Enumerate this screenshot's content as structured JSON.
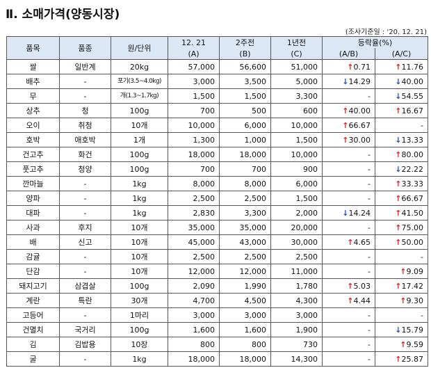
{
  "title": "Ⅱ. 소매가격(양동시장)",
  "survey_date": "(조사기준일 : '20. 12. 21)",
  "headers": {
    "item": "품목",
    "variety": "품종",
    "unit": "원/단위",
    "cur_a": "12. 21",
    "cur_b": "(A)",
    "wk_a": "2주전",
    "wk_b": "(B)",
    "yr_a": "1년전",
    "yr_b": "(C)",
    "rate": "등락율(%)",
    "rate_ab": "(A/B)",
    "rate_ac": "(A/C)"
  },
  "rows": [
    {
      "item": "쌀",
      "variety": "일반계",
      "unit": "20kg",
      "a": "57,000",
      "b": "56,600",
      "c": "51,000",
      "ab_dir": "up",
      "ab": "0.71",
      "ac_dir": "up",
      "ac": "11.76"
    },
    {
      "item": "배추",
      "variety": "-",
      "unit": "포기(3.5~4.0kg)",
      "a": "3,000",
      "b": "3,500",
      "c": "5,000",
      "ab_dir": "down",
      "ab": "14.29",
      "ac_dir": "down",
      "ac": "40.00"
    },
    {
      "item": "무",
      "variety": "-",
      "unit": "개(1.3~1.7kg)",
      "a": "1,500",
      "b": "1,500",
      "c": "3,300",
      "ab_dir": "",
      "ab": "-",
      "ac_dir": "down",
      "ac": "54.55"
    },
    {
      "item": "상추",
      "variety": "청",
      "unit": "100g",
      "a": "700",
      "b": "500",
      "c": "600",
      "ab_dir": "up",
      "ab": "40.00",
      "ac_dir": "up",
      "ac": "16.67"
    },
    {
      "item": "오이",
      "variety": "취청",
      "unit": "10개",
      "a": "10,000",
      "b": "6,000",
      "c": "10,000",
      "ab_dir": "up",
      "ab": "66.67",
      "ac_dir": "",
      "ac": "-"
    },
    {
      "item": "호박",
      "variety": "애호박",
      "unit": "1개",
      "a": "1,300",
      "b": "1,000",
      "c": "1,500",
      "ab_dir": "up",
      "ab": "30.00",
      "ac_dir": "down",
      "ac": "13.33"
    },
    {
      "item": "건고추",
      "variety": "화건",
      "unit": "100g",
      "a": "18,000",
      "b": "18,000",
      "c": "10,000",
      "ab_dir": "",
      "ab": "-",
      "ac_dir": "up",
      "ac": "80.00"
    },
    {
      "item": "풋고추",
      "variety": "청양",
      "unit": "100g",
      "a": "700",
      "b": "700",
      "c": "900",
      "ab_dir": "",
      "ab": "-",
      "ac_dir": "down",
      "ac": "22.22"
    },
    {
      "item": "깐마늘",
      "variety": "-",
      "unit": "1kg",
      "a": "8,000",
      "b": "8,000",
      "c": "6,000",
      "ab_dir": "",
      "ab": "-",
      "ac_dir": "up",
      "ac": "33.33"
    },
    {
      "item": "양파",
      "variety": "-",
      "unit": "1kg",
      "a": "2,500",
      "b": "2,500",
      "c": "1,500",
      "ab_dir": "",
      "ab": "-",
      "ac_dir": "up",
      "ac": "66.67"
    },
    {
      "item": "대파",
      "variety": "-",
      "unit": "1kg",
      "a": "2,830",
      "b": "3,300",
      "c": "2,000",
      "ab_dir": "down",
      "ab": "14.24",
      "ac_dir": "up",
      "ac": "41.50"
    },
    {
      "item": "사과",
      "variety": "후지",
      "unit": "10개",
      "a": "35,000",
      "b": "35,000",
      "c": "20,000",
      "ab_dir": "",
      "ab": "-",
      "ac_dir": "up",
      "ac": "75.00"
    },
    {
      "item": "배",
      "variety": "신고",
      "unit": "10개",
      "a": "45,000",
      "b": "43,000",
      "c": "30,000",
      "ab_dir": "up",
      "ab": "4.65",
      "ac_dir": "up",
      "ac": "50.00"
    },
    {
      "item": "감귤",
      "variety": "-",
      "unit": "10개",
      "a": "2,500",
      "b": "2,500",
      "c": "2,500",
      "ab_dir": "",
      "ab": "-",
      "ac_dir": "",
      "ac": "-"
    },
    {
      "item": "단감",
      "variety": "-",
      "unit": "10개",
      "a": "12,000",
      "b": "12,000",
      "c": "11,000",
      "ab_dir": "",
      "ab": "-",
      "ac_dir": "up",
      "ac": "9.09"
    },
    {
      "item": "돼지고기",
      "variety": "삼겹살",
      "unit": "100g",
      "a": "2,090",
      "b": "1,990",
      "c": "1,780",
      "ab_dir": "up",
      "ab": "5.03",
      "ac_dir": "up",
      "ac": "17.42"
    },
    {
      "item": "계란",
      "variety": "특란",
      "unit": "30개",
      "a": "4,700",
      "b": "4,500",
      "c": "4,300",
      "ab_dir": "up",
      "ab": "4.44",
      "ac_dir": "up",
      "ac": "9.30"
    },
    {
      "item": "고등어",
      "variety": "-",
      "unit": "1마리",
      "a": "3,000",
      "b": "3,000",
      "c": "3,000",
      "ab_dir": "",
      "ab": "-",
      "ac_dir": "",
      "ac": "-"
    },
    {
      "item": "건멸치",
      "variety": "국거리",
      "unit": "100g",
      "a": "1,600",
      "b": "1,600",
      "c": "1,900",
      "ab_dir": "",
      "ab": "-",
      "ac_dir": "down",
      "ac": "15.79"
    },
    {
      "item": "김",
      "variety": "김밥용",
      "unit": "10장",
      "a": "800",
      "b": "800",
      "c": "730",
      "ab_dir": "",
      "ab": "-",
      "ac_dir": "up",
      "ac": "9.59"
    },
    {
      "item": "굴",
      "variety": "-",
      "unit": "1kg",
      "a": "18,000",
      "b": "18,000",
      "c": "14,300",
      "ab_dir": "",
      "ab": "-",
      "ac_dir": "up",
      "ac": "25.87"
    }
  ]
}
